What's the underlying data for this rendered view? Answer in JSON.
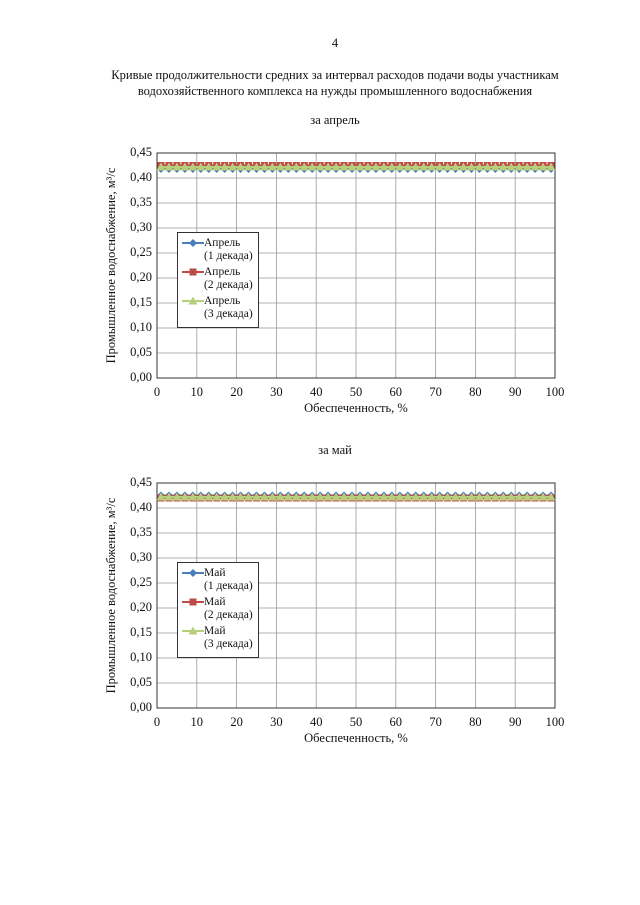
{
  "page_number": "4",
  "heading": [
    "Кривые продолжительности средних за интервал расходов подачи воды участникам",
    "водохозяйственного комплекса на нужды промышленного водоснабжения"
  ],
  "chart_data": [
    {
      "type": "line",
      "subtitle": "за апрель",
      "xlabel": "Обеспеченность, %",
      "ylabel": "Промышленное водоснабжение, м³/с",
      "x": [
        1,
        3,
        5,
        7,
        9,
        11,
        13,
        15,
        17,
        19,
        21,
        23,
        25,
        27,
        29,
        31,
        33,
        35,
        37,
        39,
        41,
        43,
        45,
        47,
        49,
        51,
        53,
        55,
        57,
        59,
        61,
        63,
        65,
        67,
        69,
        71,
        73,
        75,
        77,
        79,
        81,
        83,
        85,
        87,
        89,
        91,
        93,
        95,
        97,
        99
      ],
      "series": [
        {
          "name": "Апрель\n(1 декада)",
          "color": "#4a7ebb",
          "marker": "diamond",
          "values": [
            0.418,
            0.418,
            0.418,
            0.418,
            0.418,
            0.418,
            0.418,
            0.418,
            0.418,
            0.418,
            0.418,
            0.418,
            0.418,
            0.418,
            0.418,
            0.418,
            0.418,
            0.418,
            0.418,
            0.418,
            0.418,
            0.418,
            0.418,
            0.418,
            0.418,
            0.418,
            0.418,
            0.418,
            0.418,
            0.418,
            0.418,
            0.418,
            0.418,
            0.418,
            0.418,
            0.418,
            0.418,
            0.418,
            0.418,
            0.418,
            0.418,
            0.418,
            0.418,
            0.418,
            0.418,
            0.418,
            0.418,
            0.418,
            0.418,
            0.418
          ]
        },
        {
          "name": "Апрель\n(2 декада)",
          "color": "#be4b48",
          "marker": "square",
          "values": [
            0.425,
            0.425,
            0.425,
            0.425,
            0.425,
            0.425,
            0.425,
            0.425,
            0.425,
            0.425,
            0.425,
            0.425,
            0.425,
            0.425,
            0.425,
            0.425,
            0.425,
            0.425,
            0.425,
            0.425,
            0.425,
            0.425,
            0.425,
            0.425,
            0.425,
            0.425,
            0.425,
            0.425,
            0.425,
            0.425,
            0.425,
            0.425,
            0.425,
            0.425,
            0.425,
            0.425,
            0.425,
            0.425,
            0.425,
            0.425,
            0.425,
            0.425,
            0.425,
            0.425,
            0.425,
            0.425,
            0.425,
            0.425,
            0.425,
            0.425
          ]
        },
        {
          "name": "Апрель\n(3 декада)",
          "color": "#b5cf7a",
          "marker": "triangle",
          "values": [
            0.422,
            0.422,
            0.422,
            0.422,
            0.422,
            0.422,
            0.422,
            0.422,
            0.422,
            0.422,
            0.422,
            0.422,
            0.422,
            0.422,
            0.422,
            0.422,
            0.422,
            0.422,
            0.422,
            0.422,
            0.422,
            0.422,
            0.422,
            0.422,
            0.422,
            0.422,
            0.422,
            0.422,
            0.422,
            0.422,
            0.422,
            0.422,
            0.422,
            0.422,
            0.422,
            0.422,
            0.422,
            0.422,
            0.422,
            0.422,
            0.422,
            0.422,
            0.422,
            0.422,
            0.422,
            0.422,
            0.422,
            0.422,
            0.422,
            0.422
          ]
        }
      ],
      "xlim": [
        0,
        100
      ],
      "xticks": [
        0,
        10,
        20,
        30,
        40,
        50,
        60,
        70,
        80,
        90,
        100
      ],
      "ylim": [
        0,
        0.45
      ],
      "yticks": [
        {
          "value": 0,
          "label": "0,00"
        },
        {
          "value": 0.05,
          "label": "0,05"
        },
        {
          "value": 0.1,
          "label": "0,10"
        },
        {
          "value": 0.15,
          "label": "0,15"
        },
        {
          "value": 0.2,
          "label": "0,20"
        },
        {
          "value": 0.25,
          "label": "0,25"
        },
        {
          "value": 0.3,
          "label": "0,30"
        },
        {
          "value": 0.35,
          "label": "0,35"
        },
        {
          "value": 0.4,
          "label": "0,40"
        },
        {
          "value": 0.45,
          "label": "0,45"
        }
      ],
      "grid": true,
      "legend": "left"
    },
    {
      "type": "line",
      "subtitle": "за май",
      "xlabel": "Обеспеченность, %",
      "ylabel": "Промышленное водоснабжение, м³/с",
      "x": [
        1,
        3,
        5,
        7,
        9,
        11,
        13,
        15,
        17,
        19,
        21,
        23,
        25,
        27,
        29,
        31,
        33,
        35,
        37,
        39,
        41,
        43,
        45,
        47,
        49,
        51,
        53,
        55,
        57,
        59,
        61,
        63,
        65,
        67,
        69,
        71,
        73,
        75,
        77,
        79,
        81,
        83,
        85,
        87,
        89,
        91,
        93,
        95,
        97,
        99
      ],
      "series": [
        {
          "name": "Май\n(1 декада)",
          "color": "#4a7ebb",
          "marker": "diamond",
          "values": [
            0.425,
            0.425,
            0.425,
            0.425,
            0.425,
            0.425,
            0.425,
            0.425,
            0.425,
            0.425,
            0.425,
            0.425,
            0.425,
            0.425,
            0.425,
            0.425,
            0.425,
            0.425,
            0.425,
            0.425,
            0.425,
            0.425,
            0.425,
            0.425,
            0.425,
            0.425,
            0.425,
            0.425,
            0.425,
            0.425,
            0.425,
            0.425,
            0.425,
            0.425,
            0.425,
            0.425,
            0.425,
            0.425,
            0.425,
            0.425,
            0.425,
            0.425,
            0.425,
            0.425,
            0.425,
            0.425,
            0.425,
            0.425,
            0.425,
            0.425
          ]
        },
        {
          "name": "Май\n(2 декада)",
          "color": "#be4b48",
          "marker": "square",
          "values": [
            0.42,
            0.42,
            0.42,
            0.42,
            0.42,
            0.42,
            0.42,
            0.42,
            0.42,
            0.42,
            0.42,
            0.42,
            0.42,
            0.42,
            0.42,
            0.42,
            0.42,
            0.42,
            0.42,
            0.42,
            0.42,
            0.42,
            0.42,
            0.42,
            0.42,
            0.42,
            0.42,
            0.42,
            0.42,
            0.42,
            0.42,
            0.42,
            0.42,
            0.42,
            0.42,
            0.42,
            0.42,
            0.42,
            0.42,
            0.42,
            0.42,
            0.42,
            0.42,
            0.42,
            0.42,
            0.42,
            0.42,
            0.42,
            0.42,
            0.42
          ]
        },
        {
          "name": "Май\n(3 декада)",
          "color": "#b5cf7a",
          "marker": "triangle",
          "values": [
            0.422,
            0.422,
            0.422,
            0.422,
            0.422,
            0.422,
            0.422,
            0.422,
            0.422,
            0.422,
            0.422,
            0.422,
            0.422,
            0.422,
            0.422,
            0.422,
            0.422,
            0.422,
            0.422,
            0.422,
            0.422,
            0.422,
            0.422,
            0.422,
            0.422,
            0.422,
            0.422,
            0.422,
            0.422,
            0.422,
            0.422,
            0.422,
            0.422,
            0.422,
            0.422,
            0.422,
            0.422,
            0.422,
            0.422,
            0.422,
            0.422,
            0.422,
            0.422,
            0.422,
            0.422,
            0.422,
            0.422,
            0.422,
            0.422,
            0.422
          ]
        }
      ],
      "xlim": [
        0,
        100
      ],
      "xticks": [
        0,
        10,
        20,
        30,
        40,
        50,
        60,
        70,
        80,
        90,
        100
      ],
      "ylim": [
        0,
        0.45
      ],
      "yticks": [
        {
          "value": 0,
          "label": "0,00"
        },
        {
          "value": 0.05,
          "label": "0,05"
        },
        {
          "value": 0.1,
          "label": "0,10"
        },
        {
          "value": 0.15,
          "label": "0,15"
        },
        {
          "value": 0.2,
          "label": "0,20"
        },
        {
          "value": 0.25,
          "label": "0,25"
        },
        {
          "value": 0.3,
          "label": "0,30"
        },
        {
          "value": 0.35,
          "label": "0,35"
        },
        {
          "value": 0.4,
          "label": "0,40"
        },
        {
          "value": 0.45,
          "label": "0,45"
        }
      ],
      "grid": true,
      "legend": "left"
    }
  ]
}
